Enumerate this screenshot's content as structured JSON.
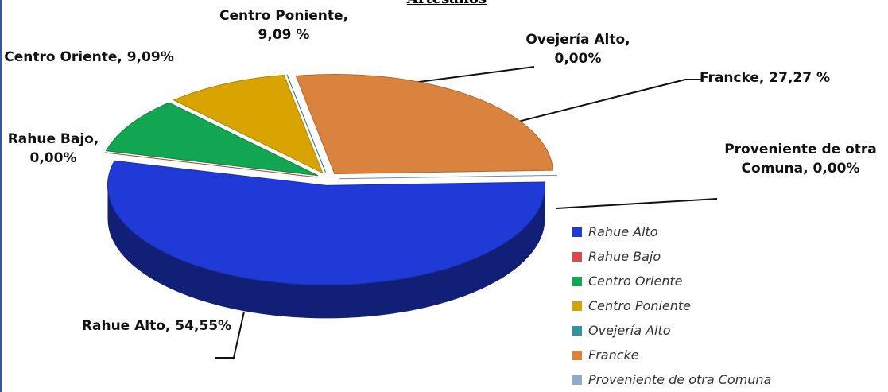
{
  "chart_data": {
    "type": "pie",
    "title": "Artesanos",
    "categories": [
      "Rahue Alto",
      "Rahue Bajo",
      "Centro Oriente",
      "Centro Poniente",
      "Ovejería Alto",
      "Francke",
      "Proveniente de otra Comuna"
    ],
    "values": [
      54.55,
      0,
      9.09,
      9.09,
      0,
      27.27,
      0
    ],
    "value_labels": [
      "Rahue Alto, 54,55%",
      "Rahue Bajo, 0,00%",
      "Centro Oriente, 9,09%",
      "Centro Poniente, 9,09 %",
      "Ovejería Alto, 0,00%",
      "Francke, 27,27 %",
      "Proveniente de otra Comuna, 0,00%"
    ],
    "colors": [
      "#1f3ad6",
      "#e04848",
      "#12a552",
      "#d9a300",
      "#2f93a3",
      "#d9833f",
      "#92a9cf"
    ],
    "legend": "right"
  }
}
